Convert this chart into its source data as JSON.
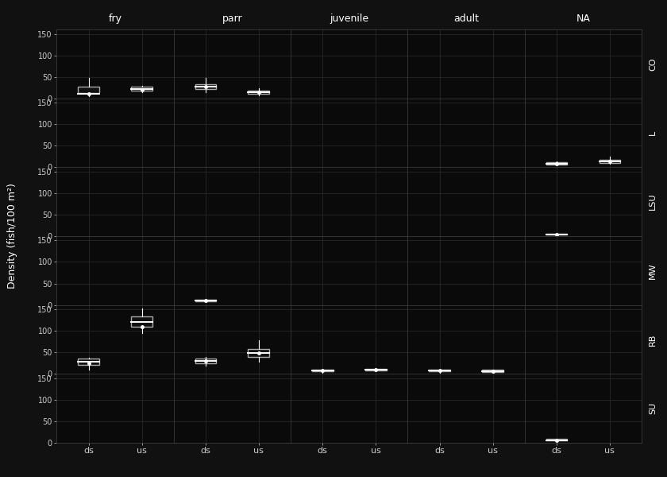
{
  "species": [
    "CO",
    "L",
    "LSU",
    "MW",
    "RB",
    "SU"
  ],
  "life_stages": [
    "fry",
    "parr",
    "juvenile",
    "adult",
    "NA"
  ],
  "x_labels": [
    "ds",
    "us"
  ],
  "ylabel": "Density (fish/100 m²)",
  "bg_color": "#111111",
  "panel_bg": "#0a0a0a",
  "strip_bg": "#222222",
  "box_facecolor": "#111111",
  "box_edgecolor": "#aaaaaa",
  "median_color": "#ffffff",
  "whisker_color": "#ffffff",
  "grid_color": "#2e2e2e",
  "text_color": "#cccccc",
  "ylim": [
    0,
    160
  ],
  "yticks": [
    0,
    50,
    100,
    150
  ],
  "boxplots": {
    "CO": {
      "fry": {
        "ds": {
          "q1": 12,
          "median": 10,
          "q3": 27,
          "whisker_lo": 5,
          "whisker_hi": 48,
          "mean": 10
        },
        "us": {
          "q1": 19,
          "median": 22,
          "q3": 27,
          "whisker_lo": 14,
          "whisker_hi": 30,
          "mean": 20
        }
      },
      "parr": {
        "ds": {
          "q1": 22,
          "median": 27,
          "q3": 33,
          "whisker_lo": 15,
          "whisker_hi": 47,
          "mean": 27
        },
        "us": {
          "q1": 11,
          "median": 14,
          "q3": 19,
          "whisker_lo": 7,
          "whisker_hi": 23,
          "mean": 14
        }
      },
      "juvenile": {
        "ds": null,
        "us": null
      },
      "adult": {
        "ds": null,
        "us": null
      },
      "NA": {
        "ds": null,
        "us": null
      }
    },
    "L": {
      "fry": {
        "ds": null,
        "us": null
      },
      "parr": {
        "ds": null,
        "us": null
      },
      "juvenile": {
        "ds": null,
        "us": null
      },
      "adult": {
        "ds": null,
        "us": null
      },
      "NA": {
        "ds": {
          "q1": 7,
          "median": 9,
          "q3": 12,
          "whisker_lo": 6,
          "whisker_hi": 14,
          "mean": 9
        },
        "us": {
          "q1": 10,
          "median": 13,
          "q3": 18,
          "whisker_lo": 8,
          "whisker_hi": 24,
          "mean": 13
        }
      }
    },
    "LSU": {
      "fry": {
        "ds": null,
        "us": null
      },
      "parr": {
        "ds": null,
        "us": null
      },
      "juvenile": {
        "ds": null,
        "us": null
      },
      "adult": {
        "ds": null,
        "us": null
      },
      "NA": {
        "ds": {
          "q1": 3,
          "median": 4,
          "q3": 5,
          "whisker_lo": 3,
          "whisker_hi": 6,
          "mean": 4
        },
        "us": null
      }
    },
    "MW": {
      "fry": {
        "ds": null,
        "us": null
      },
      "parr": {
        "ds": {
          "q1": 8,
          "median": 10,
          "q3": 12,
          "whisker_lo": 6,
          "whisker_hi": 14,
          "mean": 10
        },
        "us": null
      },
      "juvenile": {
        "ds": null,
        "us": null
      },
      "adult": {
        "ds": null,
        "us": null
      },
      "NA": {
        "ds": null,
        "us": null
      }
    },
    "RB": {
      "fry": {
        "ds": {
          "q1": 20,
          "median": 28,
          "q3": 35,
          "whisker_lo": 10,
          "whisker_hi": 38,
          "mean": 25
        },
        "us": {
          "q1": 110,
          "median": 120,
          "q3": 133,
          "whisker_lo": 95,
          "whisker_hi": 152,
          "mean": 110
        }
      },
      "parr": {
        "ds": {
          "q1": 24,
          "median": 30,
          "q3": 36,
          "whisker_lo": 18,
          "whisker_hi": 40,
          "mean": 30
        },
        "us": {
          "q1": 40,
          "median": 48,
          "q3": 58,
          "whisker_lo": 28,
          "whisker_hi": 78,
          "mean": 48
        }
      },
      "juvenile": {
        "ds": {
          "q1": 5,
          "median": 8,
          "q3": 10,
          "whisker_lo": 2,
          "whisker_hi": 12,
          "mean": 8
        },
        "us": {
          "q1": 8,
          "median": 10,
          "q3": 12,
          "whisker_lo": 5,
          "whisker_hi": 14,
          "mean": 10
        }
      },
      "adult": {
        "ds": {
          "q1": 5,
          "median": 7,
          "q3": 10,
          "whisker_lo": 2,
          "whisker_hi": 12,
          "mean": 7
        },
        "us": {
          "q1": 4,
          "median": 6,
          "q3": 9,
          "whisker_lo": 2,
          "whisker_hi": 10,
          "mean": 6
        }
      },
      "NA": {
        "ds": null,
        "us": null
      }
    },
    "SU": {
      "fry": {
        "ds": null,
        "us": null
      },
      "parr": {
        "ds": null,
        "us": null
      },
      "juvenile": {
        "ds": null,
        "us": null
      },
      "adult": {
        "ds": null,
        "us": null
      },
      "NA": {
        "ds": {
          "q1": 5,
          "median": 6,
          "q3": 8,
          "whisker_lo": 4,
          "whisker_hi": 9,
          "mean": 6
        },
        "us": null
      }
    }
  }
}
